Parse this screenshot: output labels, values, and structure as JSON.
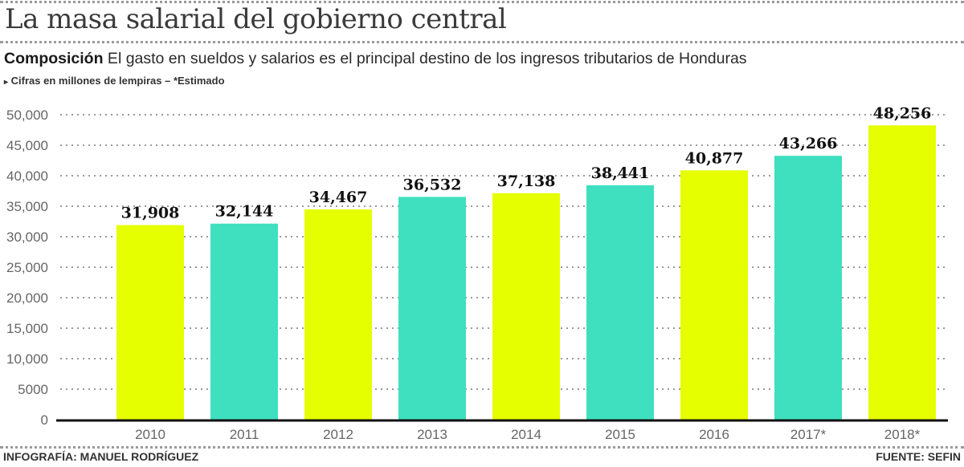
{
  "header": {
    "title": "La masa salarial del  gobierno central",
    "subtitle_bold": "Composición",
    "subtitle_text": " El gasto en sueldos y salarios es el principal destino de los ingresos tributarios de Honduras",
    "note_marker": "▸",
    "note": "Cifras en millones de lempiras – *Estimado"
  },
  "footer": {
    "credit": "INFOGRAFÍA: MANUEL RODRÍGUEZ",
    "source": "FUENTE: SEFIN"
  },
  "colors": {
    "yellow": "#e6ff00",
    "teal": "#3ee0bf",
    "axis": "#111111",
    "grid": "#9a9a9a"
  },
  "chart_data": {
    "type": "bar",
    "title": "La masa salarial del gobierno central",
    "xlabel": "",
    "ylabel": "Millones de lempiras",
    "categories": [
      "2010",
      "2011",
      "2012",
      "2013",
      "2014",
      "2015",
      "2016",
      "2017*",
      "2018*"
    ],
    "values": [
      31908,
      32144,
      34467,
      36532,
      37138,
      38441,
      40877,
      43266,
      48256
    ],
    "data_labels": [
      "31,908",
      "32,144",
      "34,467",
      "36,532",
      "37,138",
      "38,441",
      "40,877",
      "43,266",
      "48,256"
    ],
    "bar_colors": [
      "yellow",
      "teal",
      "yellow",
      "teal",
      "yellow",
      "teal",
      "yellow",
      "teal",
      "yellow"
    ],
    "ylim": [
      0,
      50000
    ],
    "yticks": [
      0,
      5000,
      10000,
      15000,
      20000,
      25000,
      30000,
      35000,
      40000,
      45000,
      50000
    ],
    "ytick_labels": [
      "0",
      "5000",
      "10,000",
      "15,000",
      "20,000",
      "25,000",
      "30,000",
      "35,000",
      "40,000",
      "45,000",
      "50,000"
    ],
    "grid": true,
    "grid_style": "dotted",
    "legend": "none"
  }
}
